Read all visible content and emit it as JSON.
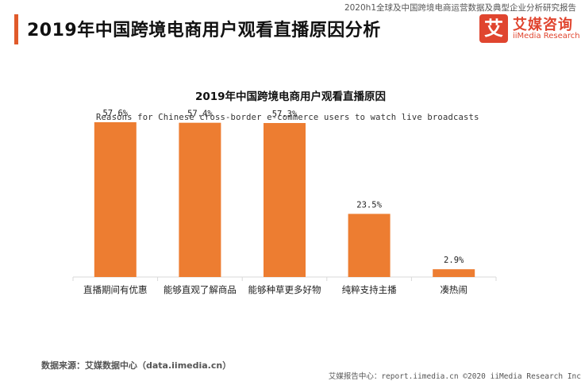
{
  "header": {
    "report_name": "2020h1全球及中国跨境电商运营数据及典型企业分析研究报告",
    "title": "2019年中国跨境电商用户观看直播原因分析",
    "logo_cn": "艾媒咨询",
    "logo_en": "iiMedia Research",
    "logo_mark": "艾"
  },
  "chart_data": {
    "type": "bar",
    "title": "2019年中国跨境电商用户观看直播原因",
    "subtitle": "Reasons for Chinese cross-border e-commerce users to watch live broadcasts in 2019",
    "categories": [
      "直播期间有优惠",
      "能够直观了解商品",
      "能够种草更多好物",
      "纯粹支持主播",
      "凑热闹"
    ],
    "values": [
      57.6,
      57.4,
      57.3,
      23.5,
      2.9
    ],
    "value_labels": [
      "57.6%",
      "57.4%",
      "57.3%",
      "23.5%",
      "2.9%"
    ],
    "ylim": [
      0,
      70
    ],
    "grid": false,
    "legend": "none",
    "bar_color": "#ed7d31",
    "axis_color": "#d9d9d9"
  },
  "footer": {
    "source": "数据来源：艾媒数据中心（data.iimedia.cn）",
    "credits": "艾媒报告中心：report.iimedia.cn  ©2020  iiMedia Research  Inc"
  }
}
